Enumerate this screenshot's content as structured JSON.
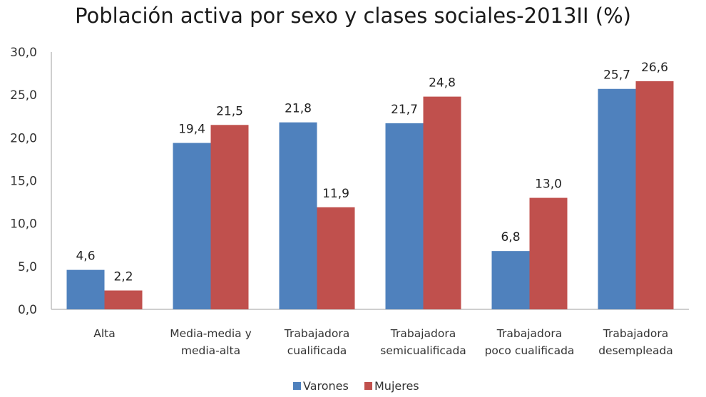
{
  "chart_data": {
    "type": "bar",
    "title": "Población activa por sexo y clases sociales-2013II (%)",
    "xlabel": "",
    "ylabel": "",
    "ylim": [
      0,
      30
    ],
    "yticks": [
      "0,0",
      "5,0",
      "10,0",
      "15,0",
      "20,0",
      "25,0",
      "30,0"
    ],
    "ytick_values": [
      0,
      5,
      10,
      15,
      20,
      25,
      30
    ],
    "grid": false,
    "legend_position": "bottom",
    "categories": [
      [
        "Alta"
      ],
      [
        "Media-media y",
        "media-alta"
      ],
      [
        "Trabajadora",
        "cualificada"
      ],
      [
        "Trabajadora",
        "semicualificada"
      ],
      [
        "Trabajadora",
        "poco cualificada"
      ],
      [
        "Trabajadora",
        "desempleada"
      ]
    ],
    "series": [
      {
        "name": "Varones",
        "color": "#4f81bd",
        "values": [
          4.6,
          19.4,
          21.8,
          21.7,
          6.8,
          25.7
        ],
        "labels": [
          "4,6",
          "19,4",
          "21,8",
          "21,7",
          "6,8",
          "25,7"
        ]
      },
      {
        "name": "Mujeres",
        "color": "#c0504d",
        "values": [
          2.2,
          21.5,
          11.9,
          24.8,
          13.0,
          26.6
        ],
        "labels": [
          "2,2",
          "21,5",
          "11,9",
          "24,8",
          "13,0",
          "26,6"
        ]
      }
    ]
  }
}
